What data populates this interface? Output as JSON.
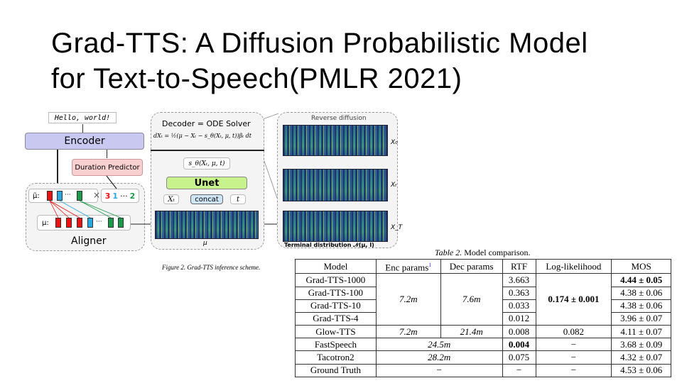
{
  "title_lines": [
    "Grad-TTS: A Diffusion Probabilistic Model",
    "for Text-to-Speech(PMLR 2021)"
  ],
  "figure": {
    "input_text": "Hello, world!",
    "encoder": "Encoder",
    "duration_predictor": "Duration Predictor",
    "aligner": "Aligner",
    "mu_tilde_label": "μ̃:",
    "mu_label": "μ:",
    "ellipsis": "···",
    "times": "×",
    "durations": [
      "3",
      "1",
      "···",
      "2"
    ],
    "decoder_title": "Decoder = ODE Solver",
    "ode_equation": "dXₜ = ½(μ − Xₜ − s_θ(Xₜ, μ, t))βₜ dt",
    "score_fn": "s_θ(Xₜ, μ, t)",
    "unet": "Unet",
    "xt_input": "Xₜ",
    "concat": "concat",
    "t_input": "t",
    "mu_spec_label": "μ",
    "reverse_diffusion": "Reverse diffusion",
    "x_labels": [
      "X₀",
      "Xₜ",
      "X_T"
    ],
    "terminal": "Terminal distribution 𝒩(μ, I)",
    "caption": "Figure 2. Grad-TTS inference scheme.",
    "colors": {
      "encoder": "#c9c8f0",
      "duration": "#f8d0d0",
      "unet": "#c8f28c",
      "concat": "#cfe6f8",
      "red": "#e11",
      "blue": "#29a8e0",
      "green": "#1a9a4a"
    }
  },
  "table": {
    "caption_prefix": "Table 2.",
    "caption": "Model comparison.",
    "headers": [
      "Model",
      "Enc params",
      "Dec params",
      "RTF",
      "Log-likelihood",
      "MOS"
    ],
    "footnote_mark": "1",
    "rows": [
      {
        "model": "Grad-TTS-1000",
        "rtf": "3.663",
        "mos": "4.44 ± 0.05"
      },
      {
        "model": "Grad-TTS-100",
        "rtf": "0.363",
        "mos": "4.38 ± 0.06"
      },
      {
        "model": "Grad-TTS-10",
        "rtf": "0.033",
        "mos": "4.38 ± 0.06"
      },
      {
        "model": "Grad-TTS-4",
        "rtf": "0.012",
        "mos": "3.96 ± 0.07"
      }
    ],
    "gradtts_enc": "7.2m",
    "gradtts_dec": "7.6m",
    "gradtts_ll": "0.174 ± 0.001",
    "glow": {
      "model": "Glow-TTS",
      "enc": "7.2m",
      "dec": "21.4m",
      "rtf": "0.008",
      "ll": "0.082",
      "mos": "4.11 ± 0.07"
    },
    "fastspeech": {
      "model": "FastSpeech",
      "params": "24.5m",
      "rtf": "0.004",
      "ll": "−",
      "mos": "3.68 ± 0.09"
    },
    "tacotron": {
      "model": "Tacotron2",
      "params": "28.2m",
      "rtf": "0.075",
      "ll": "−",
      "mos": "4.32 ± 0.07"
    },
    "gt": {
      "model": "Ground Truth",
      "params": "−",
      "rtf": "−",
      "ll": "−",
      "mos": "4.53 ± 0.06"
    }
  }
}
